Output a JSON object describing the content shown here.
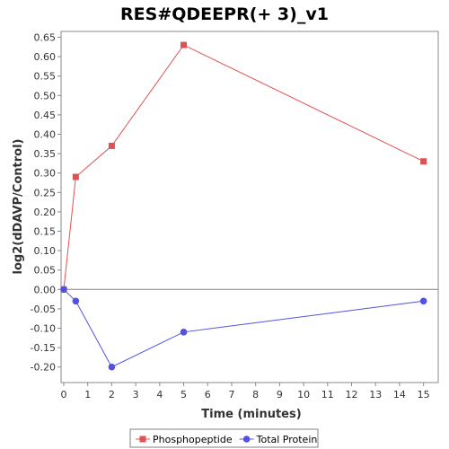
{
  "chart_data": {
    "type": "line",
    "title": "RES#QDEEPR(+ 3)_v1",
    "xlabel": "Time (minutes)",
    "ylabel": "log2(dDAVP/Control)",
    "xlim": [
      0,
      15.5
    ],
    "ylim": [
      -0.24,
      0.665
    ],
    "x_ticks": [
      0,
      1,
      2,
      3,
      4,
      5,
      6,
      7,
      8,
      9,
      10,
      11,
      12,
      13,
      14,
      15
    ],
    "y_ticks": [
      -0.2,
      -0.15,
      -0.1,
      -0.05,
      0.0,
      0.05,
      0.1,
      0.15,
      0.2,
      0.25,
      0.3,
      0.35,
      0.4,
      0.45,
      0.5,
      0.55,
      0.6,
      0.65
    ],
    "y_tick_labels": [
      "-0.20",
      "-0.15",
      "-0.10",
      "-0.05",
      "0.00",
      "0.05",
      "0.10",
      "0.15",
      "0.20",
      "0.25",
      "0.30",
      "0.35",
      "0.40",
      "0.45",
      "0.50",
      "0.55",
      "0.60",
      "0.65"
    ],
    "zero_line": true,
    "grid": false,
    "legend_position": "bottom-center",
    "series": [
      {
        "name": "Phosphopeptide",
        "color": "#e05252",
        "marker": "square",
        "x": [
          0,
          0.5,
          2,
          5,
          15
        ],
        "y": [
          0.0,
          0.29,
          0.37,
          0.63,
          0.33
        ]
      },
      {
        "name": "Total Protein",
        "color": "#5252e0",
        "marker": "circle",
        "x": [
          0,
          0.5,
          2,
          5,
          15
        ],
        "y": [
          0.0,
          -0.03,
          -0.2,
          -0.11,
          -0.03
        ]
      }
    ]
  }
}
